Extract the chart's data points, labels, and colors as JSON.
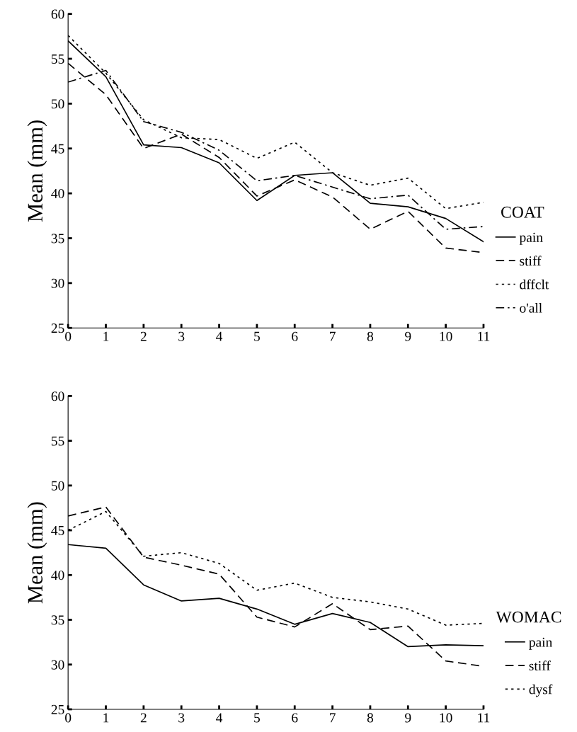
{
  "chart_data": [
    {
      "type": "line",
      "ylabel": "Mean (mm)",
      "legend_title": "COAT",
      "legend": "right",
      "grid": false,
      "marker": "none",
      "x": [
        0,
        1,
        2,
        3,
        4,
        5,
        6,
        7,
        8,
        9,
        10,
        11
      ],
      "xlim": [
        0,
        11
      ],
      "xticks": [
        0,
        1,
        2,
        3,
        4,
        5,
        6,
        7,
        8,
        9,
        10,
        11
      ],
      "ylim": [
        25,
        60
      ],
      "yticks": [
        25,
        30,
        35,
        40,
        45,
        50,
        55,
        60
      ],
      "series": [
        {
          "name": "pain",
          "color": "#000000",
          "line_style": "solid",
          "values": [
            57.0,
            53.0,
            45.4,
            45.1,
            43.4,
            39.2,
            42.0,
            42.3,
            38.9,
            38.5,
            37.2,
            34.6
          ]
        },
        {
          "name": "stiff",
          "color": "#000000",
          "line_style": "dashed",
          "values": [
            54.5,
            51.0,
            45.0,
            46.6,
            44.0,
            39.7,
            41.5,
            39.6,
            36.0,
            38.0,
            33.9,
            33.4
          ]
        },
        {
          "name": "dffclt",
          "color": "#000000",
          "line_style": "dotted",
          "values": [
            57.6,
            53.4,
            48.2,
            46.2,
            46.0,
            43.9,
            45.7,
            42.3,
            40.9,
            41.7,
            38.3,
            39.0
          ]
        },
        {
          "name": "o'all",
          "color": "#000000",
          "line_style": "dashdot",
          "values": [
            52.4,
            53.7,
            48.0,
            46.8,
            44.8,
            41.4,
            42.0,
            40.7,
            39.4,
            39.8,
            36.0,
            36.3
          ]
        }
      ]
    },
    {
      "type": "line",
      "ylabel": "Mean (mm)",
      "legend_title": "WOMAC",
      "legend": "right",
      "grid": false,
      "marker": "none",
      "x": [
        0,
        1,
        2,
        3,
        4,
        5,
        6,
        7,
        8,
        9,
        10,
        11
      ],
      "xlim": [
        0,
        11
      ],
      "xticks": [
        0,
        1,
        2,
        3,
        4,
        5,
        6,
        7,
        8,
        9,
        10,
        11
      ],
      "ylim": [
        25,
        60
      ],
      "yticks": [
        25,
        30,
        35,
        40,
        45,
        50,
        55,
        60
      ],
      "series": [
        {
          "name": "pain",
          "color": "#000000",
          "line_style": "solid",
          "values": [
            43.4,
            43.0,
            38.9,
            37.1,
            37.4,
            36.2,
            34.5,
            35.7,
            34.7,
            32.0,
            32.2,
            32.1
          ]
        },
        {
          "name": "stiff",
          "color": "#000000",
          "line_style": "dashed",
          "values": [
            46.6,
            47.6,
            42.0,
            41.1,
            40.1,
            35.3,
            34.2,
            36.8,
            33.9,
            34.3,
            30.4,
            29.8
          ]
        },
        {
          "name": "dysf",
          "color": "#000000",
          "line_style": "dotted",
          "values": [
            45.0,
            47.1,
            42.1,
            42.5,
            41.3,
            38.3,
            39.1,
            37.5,
            37.0,
            36.2,
            34.4,
            34.6
          ]
        }
      ]
    }
  ]
}
